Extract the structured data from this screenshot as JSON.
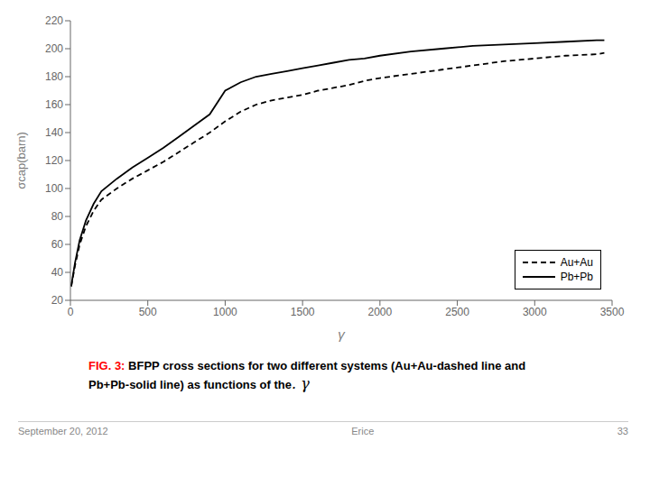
{
  "chart_data": {
    "type": "line",
    "x_label": "γ",
    "y_label": "σcap(barn)",
    "xlim": [
      0,
      3500
    ],
    "ylim": [
      20,
      220
    ],
    "xticks": [
      0,
      500,
      1000,
      1500,
      2000,
      2500,
      3000,
      3500
    ],
    "yticks": [
      20,
      40,
      60,
      80,
      100,
      120,
      140,
      160,
      180,
      200,
      220
    ],
    "grid": false,
    "legend": "lower right",
    "series": [
      {
        "name": "Au+Au",
        "color": "#000000",
        "line_style": "dashed",
        "x": [
          5,
          30,
          60,
          100,
          150,
          200,
          300,
          400,
          500,
          600,
          700,
          800,
          900,
          1000,
          1100,
          1200,
          1300,
          1400,
          1500,
          1600,
          1700,
          1800,
          1900,
          2000,
          2200,
          2400,
          2600,
          2800,
          3000,
          3200,
          3400,
          3450
        ],
        "values": [
          30,
          45,
          60,
          73,
          84,
          92,
          100,
          107,
          113,
          119,
          126,
          133,
          140,
          148,
          155,
          160,
          163,
          165,
          167,
          170,
          172,
          174,
          177,
          179,
          182,
          185,
          188,
          191,
          193,
          195,
          196,
          197
        ]
      },
      {
        "name": "Pb+Pb",
        "color": "#000000",
        "line_style": "solid",
        "x": [
          5,
          30,
          60,
          100,
          150,
          200,
          300,
          400,
          500,
          600,
          700,
          800,
          900,
          1000,
          1100,
          1200,
          1300,
          1400,
          1500,
          1600,
          1700,
          1800,
          1900,
          2000,
          2200,
          2400,
          2600,
          2800,
          3000,
          3200,
          3400,
          3450
        ],
        "values": [
          30,
          47,
          63,
          77,
          89,
          98,
          107,
          115,
          122,
          129,
          137,
          145,
          153,
          170,
          176,
          180,
          182,
          184,
          186,
          188,
          190,
          192,
          193,
          195,
          198,
          200,
          202,
          203,
          204,
          205,
          206,
          206
        ]
      }
    ],
    "annotations": [
      {
        "text": "FIG. 3:",
        "color": "#ff0000"
      },
      {
        "text": "BFPP cross sections for two different systems (Au+Au-dashed line and",
        "color": "#000000"
      },
      {
        "text": "Pb+Pb-solid line) as functions of the",
        "color": "#000000"
      },
      {
        "text": ". γ",
        "color": "#000000"
      },
      {
        "text": "September 20, 2012",
        "color": "#888888"
      },
      {
        "text": "Erice",
        "color": "#888888"
      },
      {
        "text": "33",
        "color": "#888888"
      }
    ]
  }
}
